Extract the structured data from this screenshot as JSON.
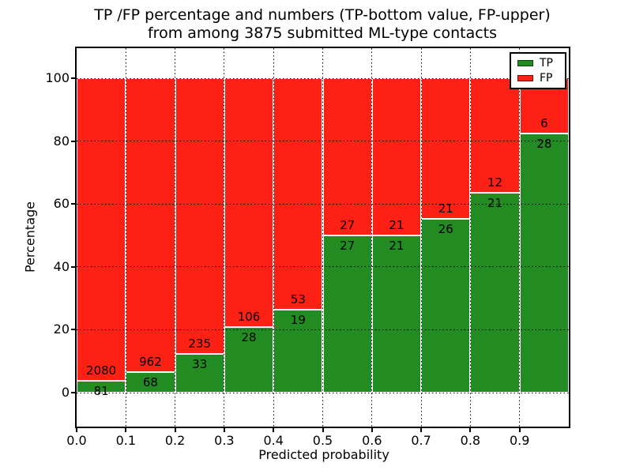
{
  "figure": {
    "title_line1": "TP /FP percentage and numbers (TP-bottom value, FP-upper)",
    "title_line2": "from among 3875 submitted ML-type contacts"
  },
  "chart_data": {
    "type": "bar",
    "stacked": true,
    "unit": "percent_of_bin",
    "title": "TP /FP percentage and numbers (TP-bottom value, FP-upper)\nfrom among 3875 submitted ML-type contacts",
    "xlabel": "Predicted probability",
    "ylabel": "Percentage",
    "total_contacts": 3875,
    "bin_edges": [
      0.0,
      0.1,
      0.2,
      0.3,
      0.4,
      0.5,
      0.6,
      0.7,
      0.8,
      0.9,
      1.0
    ],
    "categories": [
      "0.0-0.1",
      "0.1-0.2",
      "0.2-0.3",
      "0.3-0.4",
      "0.4-0.5",
      "0.5-0.6",
      "0.6-0.7",
      "0.7-0.8",
      "0.8-0.9",
      "0.9-1.0"
    ],
    "series": [
      {
        "name": "TP",
        "color": "#228b22",
        "counts": [
          81,
          68,
          33,
          28,
          19,
          27,
          21,
          26,
          21,
          28
        ]
      },
      {
        "name": "FP",
        "color": "#fd2015",
        "counts": [
          2080,
          962,
          235,
          106,
          53,
          27,
          21,
          21,
          12,
          6
        ]
      }
    ],
    "tp_percent": [
      3.75,
      6.6,
      12.31,
      20.9,
      26.39,
      50.0,
      50.0,
      55.32,
      63.64,
      82.35
    ],
    "annotation_scheme": "TP count below segment boundary, FP count above segment boundary",
    "xticks": {
      "values": [
        0.0,
        0.1,
        0.2,
        0.3,
        0.4,
        0.5,
        0.6,
        0.7,
        0.8,
        0.9
      ],
      "labels": [
        "0.0",
        "0.1",
        "0.2",
        "0.3",
        "0.4",
        "0.5",
        "0.6",
        "0.7",
        "0.8",
        "0.9"
      ]
    },
    "yticks": {
      "values": [
        0,
        20,
        40,
        60,
        80,
        100
      ],
      "labels": [
        "0",
        "20",
        "40",
        "60",
        "80",
        "100"
      ]
    },
    "xlim": [
      0.0,
      1.0
    ],
    "ylim": [
      -10.8,
      109.6
    ],
    "grid": true,
    "grid_style": "dotted",
    "legend_position": "upper right"
  },
  "legend": {
    "items": [
      {
        "label": "TP",
        "color": "#228b22"
      },
      {
        "label": "FP",
        "color": "#fd2015"
      }
    ]
  }
}
